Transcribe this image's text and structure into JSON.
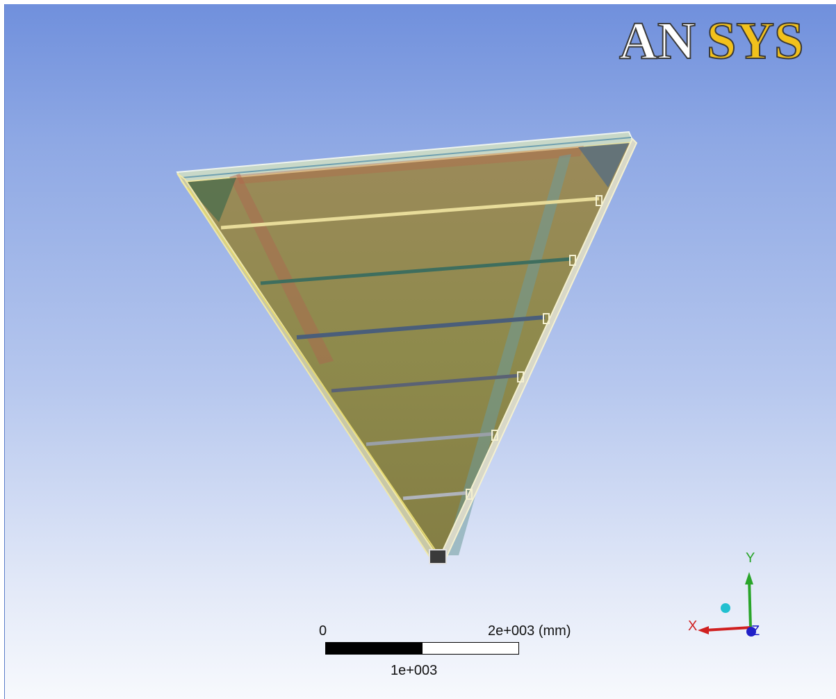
{
  "logo": {
    "part1": "AN",
    "part2": "SYS",
    "color_part1": "#ffffff",
    "color_part2": "#f2c11c",
    "outline_color": "#3a3a3a"
  },
  "scale": {
    "zero_label": "0",
    "max_label": "2e+003 (mm)",
    "mid_label": "1e+003"
  },
  "triad": {
    "y_label": "Y",
    "x_label": "X",
    "z_label": "Z",
    "y_color": "#2aa52a",
    "x_color": "#d02020",
    "z_color": "#2020c8",
    "iso_ball_color": "#22c0d0"
  },
  "background": {
    "top_color": "#6f8fdc",
    "bottom_color": "#f7f9fd"
  },
  "model": {
    "fill_color": "#8a8a4a",
    "edge_color": "#f0e6a0",
    "stringer_count": 6
  }
}
